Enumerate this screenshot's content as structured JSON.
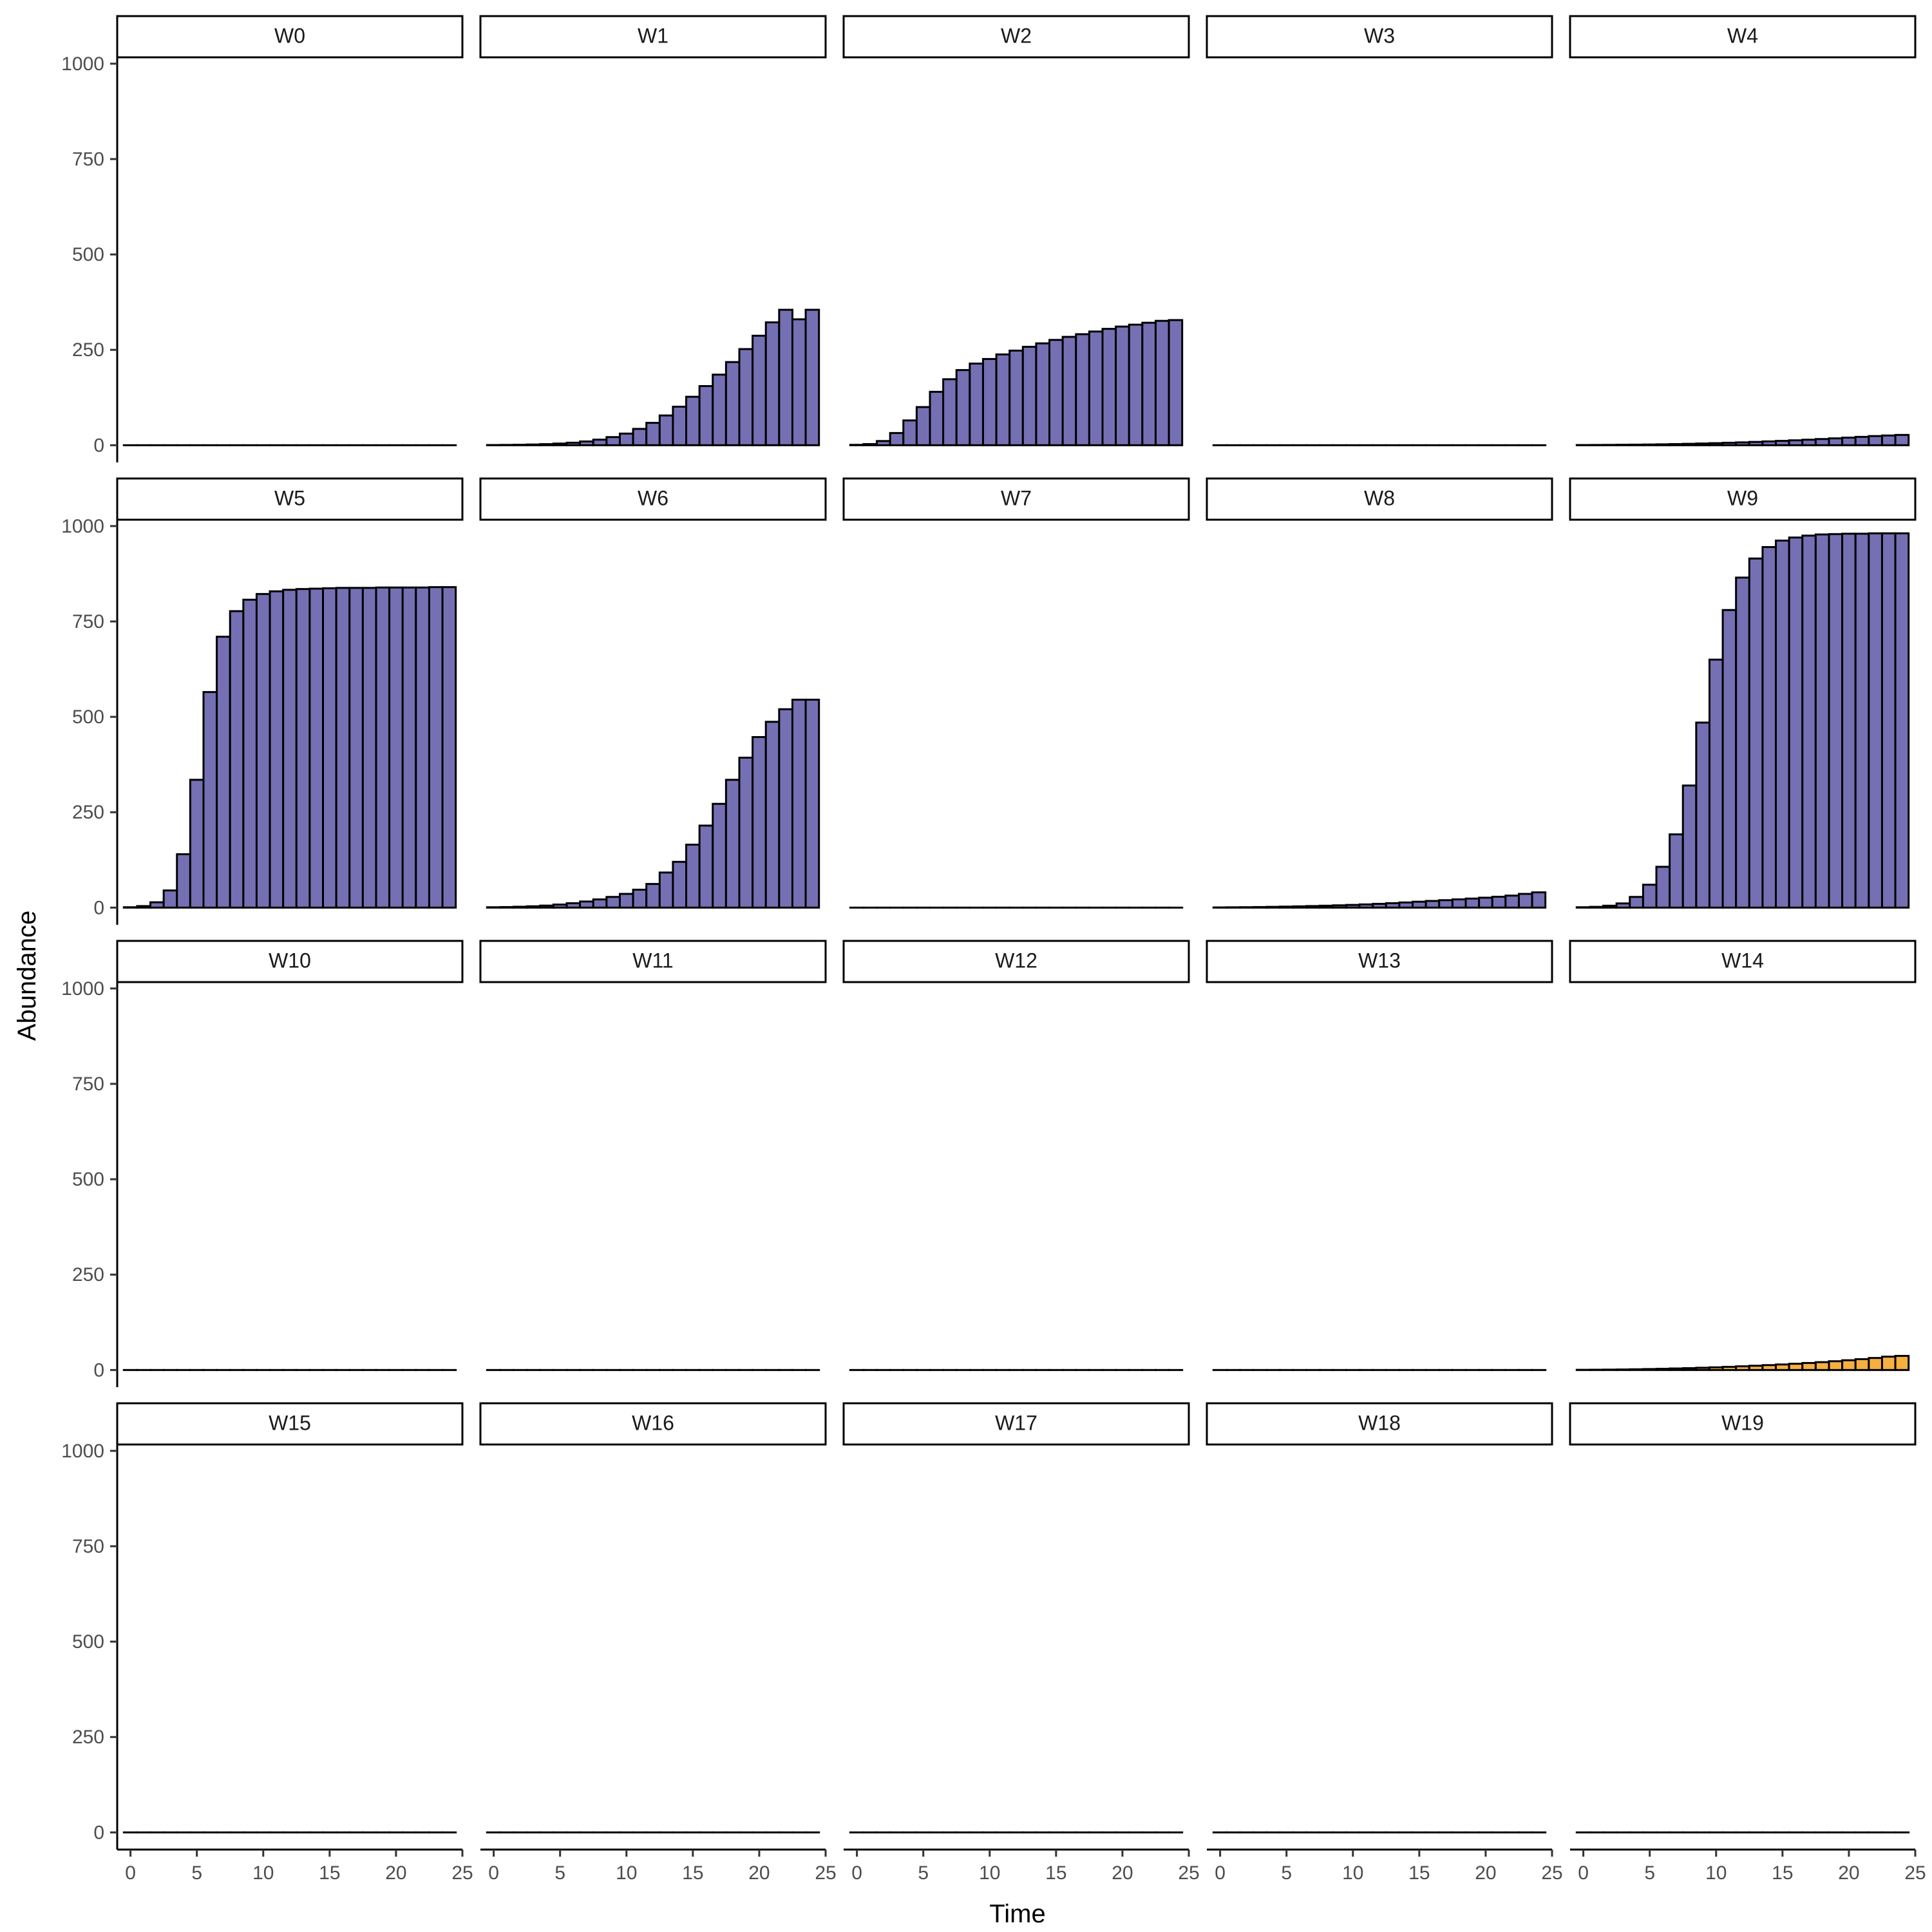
{
  "chart_data": {
    "type": "bar",
    "xlabel": "Time",
    "ylabel": "Abundance",
    "xlim": [
      -1,
      25
    ],
    "ylim": [
      -45,
      1015
    ],
    "x_ticks": [
      0,
      5,
      10,
      15,
      20,
      25
    ],
    "y_ticks": [
      0,
      250,
      500,
      750,
      1000
    ],
    "grid": false,
    "legend": "none",
    "colors": {
      "purple": "#7570b3",
      "orange": "#f5b041"
    },
    "x": [
      0,
      1,
      2,
      3,
      4,
      5,
      6,
      7,
      8,
      9,
      10,
      11,
      12,
      13,
      14,
      15,
      16,
      17,
      18,
      19,
      20,
      21,
      22,
      23,
      24
    ],
    "panels": [
      {
        "label": "W0",
        "color": "purple",
        "values": [
          0,
          0,
          0,
          0,
          0,
          0,
          0,
          0,
          0,
          0,
          0,
          0,
          0,
          0,
          0,
          0,
          0,
          0,
          0,
          0,
          0,
          0,
          0,
          0,
          0
        ]
      },
      {
        "label": "W1",
        "color": "purple",
        "values": [
          0.5,
          0.8,
          1.2,
          1.9,
          2.9,
          4.4,
          6.6,
          9.9,
          14.6,
          21.3,
          30.5,
          42.8,
          58.6,
          78,
          101,
          127,
          155,
          185,
          218,
          252,
          287,
          322,
          355,
          330,
          355
        ]
      },
      {
        "label": "W2",
        "color": "purple",
        "values": [
          1,
          3,
          11,
          32,
          65,
          100,
          140,
          173,
          197,
          214,
          226,
          238,
          248,
          258,
          267,
          276,
          284,
          291,
          298,
          305,
          311,
          316,
          321,
          326,
          328
        ]
      },
      {
        "label": "W3",
        "color": "purple",
        "values": [
          0,
          0,
          0,
          0,
          0,
          0,
          0,
          0,
          0,
          0,
          0,
          0,
          0,
          0,
          0,
          0,
          0,
          0,
          0,
          0,
          0,
          0,
          0,
          0,
          0
        ]
      },
      {
        "label": "W4",
        "color": "purple",
        "values": [
          0.5,
          0.7,
          0.9,
          1.2,
          1.5,
          1.9,
          2.4,
          3,
          3.7,
          4.5,
          5.4,
          6.4,
          7.5,
          8.7,
          10,
          11.4,
          12.9,
          14.5,
          16.2,
          18,
          19.9,
          21.9,
          24,
          25.5,
          27
        ]
      },
      {
        "label": "W5",
        "color": "purple",
        "values": [
          1,
          4,
          14,
          45,
          140,
          335,
          565,
          710,
          777,
          807,
          822,
          829,
          833,
          835,
          836,
          837,
          838,
          838,
          838,
          839,
          839,
          839,
          839,
          840,
          840
        ]
      },
      {
        "label": "W6",
        "color": "purple",
        "values": [
          1,
          1.5,
          2.3,
          3.5,
          5.3,
          8,
          11.5,
          16,
          21.5,
          28,
          36,
          47,
          62,
          92,
          120,
          165,
          215,
          272,
          335,
          393,
          447,
          487,
          520,
          545,
          545
        ]
      },
      {
        "label": "W7",
        "color": "purple",
        "values": [
          0,
          0,
          0,
          0,
          0,
          0,
          0,
          0,
          0,
          0,
          0,
          0,
          0,
          0,
          0,
          0,
          0,
          0,
          0,
          0,
          0,
          0,
          0,
          0,
          0
        ]
      },
      {
        "label": "W8",
        "color": "purple",
        "values": [
          0.5,
          0.8,
          1.1,
          1.5,
          2,
          2.6,
          3.3,
          4.1,
          5,
          6,
          7.1,
          8.4,
          9.9,
          11.6,
          13.5,
          15.5,
          17.5,
          19.5,
          21.6,
          23.7,
          26,
          28.5,
          31.5,
          36,
          40
        ]
      },
      {
        "label": "W9",
        "color": "purple",
        "values": [
          1,
          2,
          5,
          11,
          28,
          60,
          107,
          192,
          320,
          485,
          650,
          780,
          865,
          915,
          945,
          962,
          970,
          975,
          978,
          979,
          980,
          980,
          981,
          981,
          981
        ]
      },
      {
        "label": "W10",
        "color": "purple",
        "values": [
          0,
          0,
          0,
          0,
          0,
          0,
          0,
          0,
          0,
          0,
          0,
          0,
          0,
          0,
          0,
          0,
          0,
          0,
          0,
          0,
          0,
          0,
          0,
          0,
          0
        ]
      },
      {
        "label": "W11",
        "color": "purple",
        "values": [
          0,
          0,
          0,
          0,
          0,
          0,
          0,
          0,
          0,
          0,
          0,
          0,
          0,
          0,
          0,
          0,
          0,
          0,
          0,
          0,
          0,
          0,
          0,
          0,
          0
        ]
      },
      {
        "label": "W12",
        "color": "purple",
        "values": [
          0,
          0,
          0,
          0,
          0,
          0,
          0,
          0,
          0,
          0,
          0,
          0,
          0,
          0,
          0,
          0,
          0,
          0,
          0,
          0,
          0,
          0,
          0,
          0,
          0
        ]
      },
      {
        "label": "W13",
        "color": "purple",
        "values": [
          0,
          0,
          0,
          0,
          0,
          0,
          0,
          0,
          0,
          0,
          0,
          0,
          0,
          0,
          0,
          0,
          0,
          0,
          0,
          0,
          0,
          0,
          0,
          0,
          0
        ]
      },
      {
        "label": "W14",
        "color": "orange",
        "values": [
          0.5,
          0.7,
          1,
          1.4,
          1.9,
          2.5,
          3.2,
          4,
          4.9,
          5.9,
          7,
          8.3,
          9.7,
          11.2,
          12.8,
          14.5,
          16.4,
          18.4,
          20.6,
          23,
          25.6,
          28.4,
          31.5,
          35,
          37
        ]
      },
      {
        "label": "W15",
        "color": "purple",
        "values": [
          0,
          0,
          0,
          0,
          0,
          0,
          0,
          0,
          0,
          0,
          0,
          0,
          0,
          0,
          0,
          0,
          0,
          0,
          0,
          0,
          0,
          0,
          0,
          0,
          0
        ]
      },
      {
        "label": "W16",
        "color": "purple",
        "values": [
          0,
          0,
          0,
          0,
          0,
          0,
          0,
          0,
          0,
          0,
          0,
          0,
          0,
          0,
          0,
          0,
          0,
          0,
          0,
          0,
          0,
          0,
          0,
          0,
          0
        ]
      },
      {
        "label": "W17",
        "color": "purple",
        "values": [
          0,
          0,
          0,
          0,
          0,
          0,
          0,
          0,
          0,
          0,
          0,
          0,
          0,
          0,
          0,
          0,
          0,
          0,
          0,
          0,
          0,
          0,
          0,
          0,
          0
        ]
      },
      {
        "label": "W18",
        "color": "purple",
        "values": [
          0,
          0,
          0,
          0,
          0,
          0,
          0,
          0,
          0,
          0,
          0,
          0,
          0,
          0,
          0,
          0,
          0,
          0,
          0,
          0,
          0,
          0,
          0,
          0,
          0
        ]
      },
      {
        "label": "W19",
        "color": "purple",
        "values": [
          0,
          0,
          0,
          0,
          0,
          0,
          0,
          0,
          0,
          0,
          0,
          0,
          0,
          0,
          0,
          0,
          0,
          0,
          0,
          0,
          0,
          0,
          0,
          0,
          0
        ]
      }
    ]
  }
}
